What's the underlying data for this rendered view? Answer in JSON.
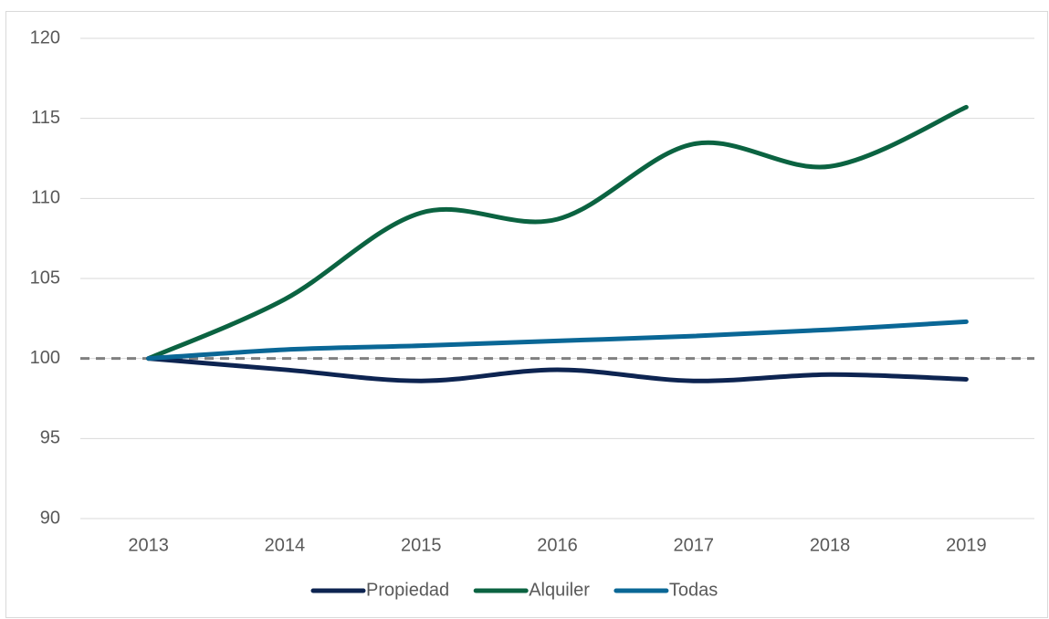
{
  "chart_data": {
    "type": "line",
    "categories": [
      "2013",
      "2014",
      "2015",
      "2016",
      "2017",
      "2018",
      "2019"
    ],
    "series": [
      {
        "name": "Propiedad",
        "color": "#0d2451",
        "values": [
          100,
          99.3,
          98.6,
          99.3,
          98.6,
          99.0,
          98.7
        ]
      },
      {
        "name": "Alquiler",
        "color": "#0b6341",
        "values": [
          100,
          103.7,
          109.1,
          108.7,
          113.4,
          112.0,
          115.7
        ]
      },
      {
        "name": "Todas",
        "color": "#0a6796",
        "values": [
          100,
          100.55,
          100.8,
          101.1,
          101.4,
          101.8,
          102.3
        ]
      }
    ],
    "ylim": [
      90,
      120
    ],
    "yticks": [
      90,
      95,
      100,
      105,
      110,
      115,
      120
    ],
    "grid": true,
    "reference_line": 100,
    "smooth": true,
    "legend": "bottom"
  }
}
